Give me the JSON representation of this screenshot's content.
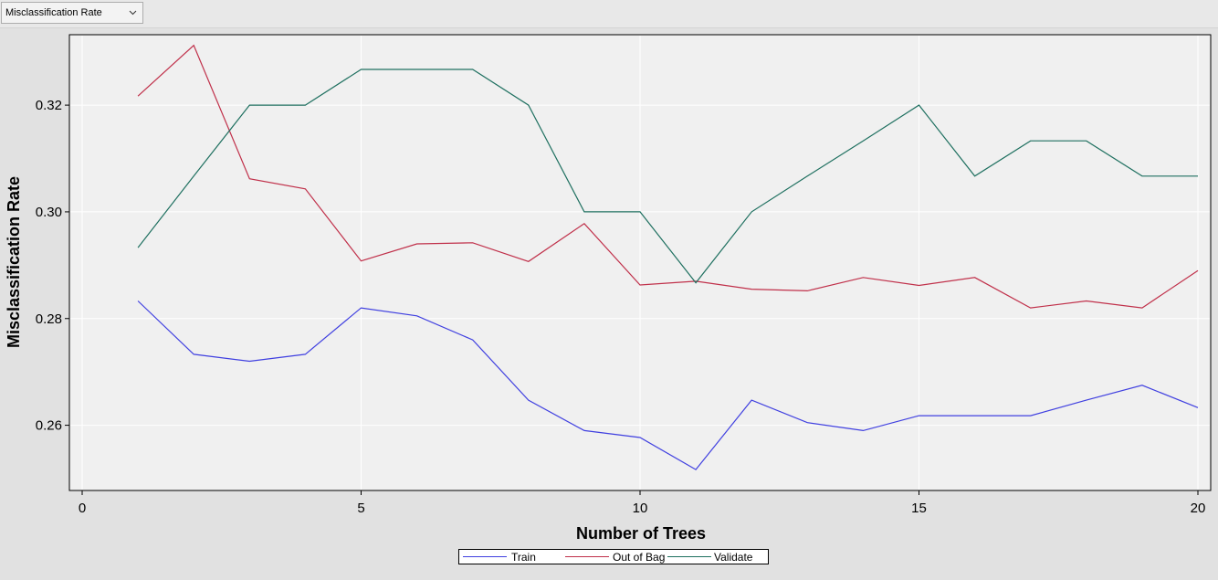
{
  "toolbar": {
    "selector_value": "Misclassification Rate",
    "selector_icon": "chevron-down-icon"
  },
  "chart_data": {
    "type": "line",
    "xlabel": "Number of Trees",
    "ylabel": "Misclassification Rate",
    "xlim": [
      0,
      20
    ],
    "ylim": [
      0.25,
      0.332
    ],
    "x_ticks": [
      0,
      5,
      10,
      15,
      20
    ],
    "x_tick_labels": [
      "0",
      "5",
      "10",
      "15",
      "20"
    ],
    "y_ticks": [
      0.26,
      0.28,
      0.3,
      0.32
    ],
    "y_tick_labels": [
      "0.26",
      "0.28",
      "0.30",
      "0.32"
    ],
    "grid": true,
    "legend_position": "bottom-center",
    "x": [
      1,
      2,
      3,
      4,
      5,
      6,
      7,
      8,
      9,
      10,
      11,
      12,
      13,
      14,
      15,
      16,
      17,
      18,
      19,
      20
    ],
    "series": [
      {
        "name": "Train",
        "color": "#4040e0",
        "values": [
          0.2833,
          0.2733,
          0.272,
          0.2733,
          0.282,
          0.2805,
          0.276,
          0.2647,
          0.259,
          0.2577,
          0.2517,
          0.2647,
          0.2605,
          0.259,
          0.2618,
          0.2618,
          0.2618,
          0.2647,
          0.2675,
          0.2633
        ]
      },
      {
        "name": "Out of Bag",
        "color": "#c0304a",
        "values": [
          0.3217,
          0.3312,
          0.3062,
          0.3043,
          0.2908,
          0.294,
          0.2942,
          0.2907,
          0.2978,
          0.2863,
          0.287,
          0.2855,
          0.2852,
          0.2877,
          0.2862,
          0.2877,
          0.282,
          0.2833,
          0.282,
          0.289
        ]
      },
      {
        "name": "Validate",
        "color": "#1f7060",
        "values": [
          0.2933,
          0.3067,
          0.32,
          0.32,
          0.3267,
          0.3267,
          0.3267,
          0.32,
          0.3,
          0.3,
          0.2867,
          0.3,
          0.3067,
          0.3133,
          0.32,
          0.3067,
          0.3133,
          0.3133,
          0.3067,
          0.3067
        ]
      }
    ]
  }
}
